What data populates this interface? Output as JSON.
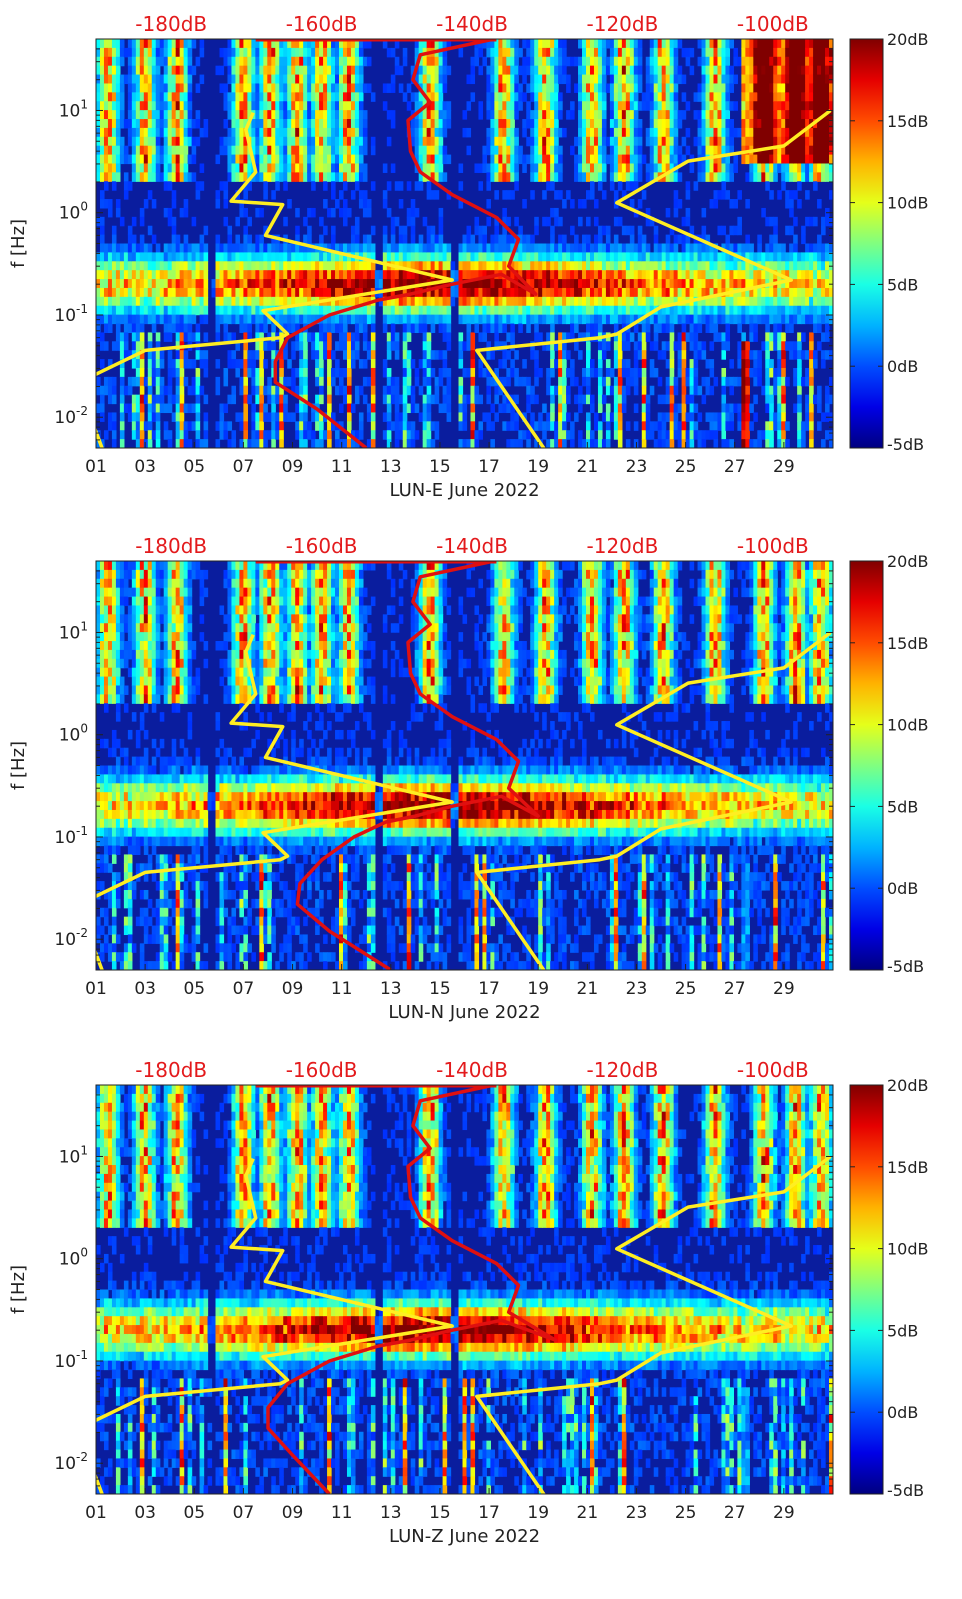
{
  "figure": {
    "month": "June 2022",
    "colors": {
      "yellow_curve": "#ffee22",
      "red_curve": "#e01010",
      "db_label": "#e31a1c",
      "bg": "#0a1d9e"
    }
  },
  "chart_data": [
    {
      "type": "heatmap",
      "station": "LUN-E",
      "xlabel": "LUN-E June 2022",
      "ylabel": "f [Hz]",
      "xticks": [
        "01",
        "03",
        "05",
        "07",
        "09",
        "11",
        "13",
        "15",
        "17",
        "19",
        "21",
        "23",
        "25",
        "27",
        "29"
      ],
      "yticks": [
        "10-2",
        "10-1",
        "100",
        "101"
      ],
      "db_top_labels": [
        "-180dB",
        "-160dB",
        "-140dB",
        "-120dB",
        "-100dB"
      ],
      "colorbar_ticks": [
        "20dB",
        "15dB",
        "10dB",
        "5dB",
        "0dB",
        "-5dB"
      ],
      "colorbar_range_db": [
        -5,
        20
      ],
      "x_range_days": [
        1,
        31
      ],
      "y_range_hz": [
        0.005,
        50
      ],
      "top_axis_db_range": [
        -190,
        -92
      ],
      "yellow_model_curve": {
        "day": [
          1.4,
          0.5,
          0.8,
          3,
          8.5,
          8.8,
          7.8,
          15.5,
          7.9,
          8.6,
          6.5,
          7.5,
          7.1,
          7.4
        ],
        "freq_hz": [
          0.004,
          0.015,
          0.025,
          0.045,
          0.06,
          0.065,
          0.11,
          0.22,
          0.6,
          1.2,
          1.3,
          2.5,
          6.5,
          9.5
        ]
      },
      "yellow_model_curve_2": {
        "day": [
          19.5,
          16.5,
          21.5,
          22.2,
          24,
          29.3,
          22.2,
          25.1,
          29,
          30.9
        ],
        "freq_hz": [
          0.004,
          0.045,
          0.06,
          0.065,
          0.12,
          0.22,
          1.25,
          3.2,
          4.5,
          10
        ]
      },
      "red_psd_curve": {
        "day": [
          12,
          10,
          8.3,
          8.3,
          8.8,
          10.5,
          12.5,
          13.8,
          15.5,
          17.5,
          18.9,
          17.8,
          18.2,
          17.3,
          15.5,
          14.2,
          13.8,
          13.7,
          14.6,
          13.9,
          14.2,
          17.2
        ],
        "freq_hz": [
          0.005,
          0.012,
          0.022,
          0.035,
          0.06,
          0.1,
          0.14,
          0.16,
          0.2,
          0.25,
          0.16,
          0.3,
          0.55,
          0.9,
          1.5,
          2.5,
          4,
          8,
          12,
          20,
          35,
          50
        ]
      }
    },
    {
      "type": "heatmap",
      "station": "LUN-N",
      "xlabel": "LUN-N June 2022",
      "ylabel": "f [Hz]",
      "xticks": [
        "01",
        "03",
        "05",
        "07",
        "09",
        "11",
        "13",
        "15",
        "17",
        "19",
        "21",
        "23",
        "25",
        "27",
        "29"
      ],
      "yticks": [
        "10-2",
        "10-1",
        "100",
        "101"
      ],
      "db_top_labels": [
        "-180dB",
        "-160dB",
        "-140dB",
        "-120dB",
        "-100dB"
      ],
      "colorbar_ticks": [
        "20dB",
        "15dB",
        "10dB",
        "5dB",
        "0dB",
        "-5dB"
      ],
      "colorbar_range_db": [
        -5,
        20
      ],
      "x_range_days": [
        1,
        31
      ],
      "y_range_hz": [
        0.005,
        50
      ],
      "top_axis_db_range": [
        -190,
        -92
      ],
      "yellow_model_curve": {
        "day": [
          1.4,
          0.5,
          0.8,
          3,
          8.5,
          8.8,
          7.8,
          15.5,
          7.9,
          8.6,
          6.5,
          7.5,
          7.1,
          7.4
        ],
        "freq_hz": [
          0.004,
          0.015,
          0.025,
          0.045,
          0.06,
          0.065,
          0.11,
          0.22,
          0.6,
          1.2,
          1.3,
          2.5,
          6.5,
          9.5
        ]
      },
      "yellow_model_curve_2": {
        "day": [
          19.5,
          16.5,
          21.5,
          22.2,
          24,
          29.3,
          22.2,
          25.1,
          29,
          30.9
        ],
        "freq_hz": [
          0.004,
          0.045,
          0.06,
          0.065,
          0.12,
          0.22,
          1.25,
          3.2,
          4.5,
          10
        ]
      },
      "red_psd_curve": {
        "day": [
          13,
          10.5,
          9.2,
          9.3,
          10.2,
          11.5,
          12.8,
          14,
          15.5,
          17.5,
          19,
          17.8,
          18.2,
          17.3,
          15.5,
          14.2,
          13.8,
          13.7,
          14.6,
          13.9,
          14.2,
          17.2
        ],
        "freq_hz": [
          0.005,
          0.012,
          0.022,
          0.035,
          0.06,
          0.1,
          0.14,
          0.16,
          0.2,
          0.25,
          0.16,
          0.3,
          0.55,
          0.9,
          1.5,
          2.5,
          4,
          8,
          12,
          20,
          35,
          50
        ]
      }
    },
    {
      "type": "heatmap",
      "station": "LUN-Z",
      "xlabel": "LUN-Z June 2022",
      "ylabel": "f [Hz]",
      "xticks": [
        "01",
        "03",
        "05",
        "07",
        "09",
        "11",
        "13",
        "15",
        "17",
        "19",
        "21",
        "23",
        "25",
        "27",
        "29"
      ],
      "yticks": [
        "10-2",
        "10-1",
        "100",
        "101"
      ],
      "db_top_labels": [
        "-180dB",
        "-160dB",
        "-140dB",
        "-120dB",
        "-100dB"
      ],
      "colorbar_ticks": [
        "20dB",
        "15dB",
        "10dB",
        "5dB",
        "0dB",
        "-5dB"
      ],
      "colorbar_range_db": [
        -5,
        20
      ],
      "x_range_days": [
        1,
        31
      ],
      "y_range_hz": [
        0.005,
        50
      ],
      "top_axis_db_range": [
        -190,
        -92
      ],
      "yellow_model_curve": {
        "day": [
          1.4,
          0.5,
          0.8,
          3,
          8.5,
          8.8,
          7.8,
          15.5,
          7.9,
          8.6,
          6.5,
          7.5,
          7.1,
          7.4
        ],
        "freq_hz": [
          0.004,
          0.015,
          0.025,
          0.045,
          0.06,
          0.065,
          0.11,
          0.22,
          0.6,
          1.2,
          1.3,
          2.5,
          6.5,
          9.5
        ]
      },
      "yellow_model_curve_2": {
        "day": [
          19.5,
          16.5,
          21.5,
          22.2,
          24,
          29.3,
          22.2,
          25.1,
          29,
          30.9
        ],
        "freq_hz": [
          0.004,
          0.045,
          0.06,
          0.065,
          0.12,
          0.22,
          1.25,
          3.2,
          4.5,
          10
        ]
      },
      "red_psd_curve": {
        "day": [
          10.5,
          9,
          8,
          8,
          8.8,
          10.5,
          12.5,
          13.8,
          15.5,
          17.5,
          19.7,
          17.8,
          18.2,
          17.3,
          15.5,
          14.2,
          13.8,
          13.7,
          14.6,
          13.9,
          14.2,
          17.2
        ],
        "freq_hz": [
          0.005,
          0.012,
          0.022,
          0.035,
          0.06,
          0.1,
          0.14,
          0.16,
          0.2,
          0.25,
          0.16,
          0.3,
          0.55,
          0.9,
          1.5,
          2.5,
          4,
          8,
          12,
          20,
          35,
          50
        ]
      }
    }
  ]
}
